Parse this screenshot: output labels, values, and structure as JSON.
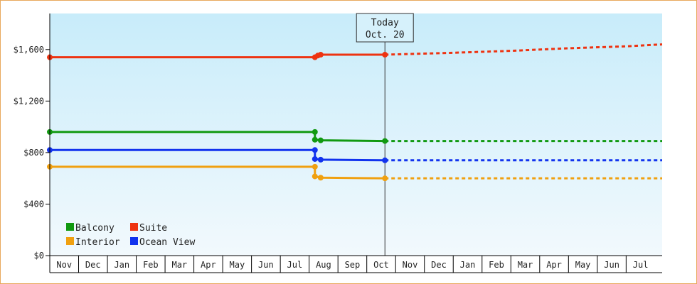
{
  "chart_data": {
    "type": "line",
    "title": "",
    "xlabel": "",
    "ylabel": "",
    "ylim": [
      0,
      1880
    ],
    "y_ticks": [
      0,
      400,
      800,
      1200,
      1600
    ],
    "y_tick_labels": [
      "$0",
      "$400",
      "$800",
      "$1,200",
      "$1,600"
    ],
    "x_month_labels": [
      "Nov",
      "Dec",
      "Jan",
      "Feb",
      "Mar",
      "Apr",
      "May",
      "Jun",
      "Jul",
      "Aug",
      "Sep",
      "Oct",
      "Nov",
      "Dec",
      "Jan",
      "Feb",
      "Mar",
      "Apr",
      "May",
      "Jun",
      "Jul"
    ],
    "x_range_months": [
      0,
      21.25
    ],
    "today": {
      "label_line1": "Today",
      "label_line2": "Oct. 20",
      "x": 11.63
    },
    "legend": {
      "placement": "bottom-left"
    },
    "series": [
      {
        "name": "Balcony",
        "color": "#119911",
        "history": [
          {
            "x": 0,
            "y": 960
          },
          {
            "x": 9.2,
            "y": 960
          },
          {
            "x": 9.2,
            "y": 900
          },
          {
            "x": 9.4,
            "y": 895
          },
          {
            "x": 11.63,
            "y": 890
          }
        ],
        "points": [
          {
            "x": 0,
            "y": 960
          },
          {
            "x": 9.2,
            "y": 960
          },
          {
            "x": 9.2,
            "y": 900
          },
          {
            "x": 9.4,
            "y": 895
          },
          {
            "x": 11.63,
            "y": 890
          }
        ],
        "forecast": [
          {
            "x": 11.63,
            "y": 890
          },
          {
            "x": 21.25,
            "y": 890
          }
        ]
      },
      {
        "name": "Suite",
        "color": "#ee3311",
        "history": [
          {
            "x": 0,
            "y": 1540
          },
          {
            "x": 9.2,
            "y": 1540
          },
          {
            "x": 9.3,
            "y": 1553
          },
          {
            "x": 9.4,
            "y": 1560
          },
          {
            "x": 11.63,
            "y": 1560
          }
        ],
        "points": [
          {
            "x": 0,
            "y": 1540
          },
          {
            "x": 9.2,
            "y": 1540
          },
          {
            "x": 9.3,
            "y": 1553
          },
          {
            "x": 9.4,
            "y": 1560
          },
          {
            "x": 11.63,
            "y": 1560
          }
        ],
        "forecast": [
          {
            "x": 11.63,
            "y": 1560
          },
          {
            "x": 14,
            "y": 1575
          },
          {
            "x": 16,
            "y": 1590
          },
          {
            "x": 18,
            "y": 1610
          },
          {
            "x": 20,
            "y": 1625
          },
          {
            "x": 21.25,
            "y": 1640
          }
        ]
      },
      {
        "name": "Interior",
        "color": "#f0a010",
        "history": [
          {
            "x": 0,
            "y": 690
          },
          {
            "x": 9.2,
            "y": 690
          },
          {
            "x": 9.2,
            "y": 615
          },
          {
            "x": 9.4,
            "y": 605
          },
          {
            "x": 11.63,
            "y": 600
          }
        ],
        "points": [
          {
            "x": 0,
            "y": 690
          },
          {
            "x": 9.2,
            "y": 690
          },
          {
            "x": 9.2,
            "y": 615
          },
          {
            "x": 9.4,
            "y": 605
          },
          {
            "x": 11.63,
            "y": 600
          }
        ],
        "forecast": [
          {
            "x": 11.63,
            "y": 600
          },
          {
            "x": 21.25,
            "y": 600
          }
        ]
      },
      {
        "name": "Ocean View",
        "color": "#1133ee",
        "history": [
          {
            "x": 0,
            "y": 820
          },
          {
            "x": 9.2,
            "y": 820
          },
          {
            "x": 9.2,
            "y": 750
          },
          {
            "x": 9.4,
            "y": 745
          },
          {
            "x": 11.63,
            "y": 740
          }
        ],
        "points": [
          {
            "x": 0,
            "y": 820
          },
          {
            "x": 9.2,
            "y": 820
          },
          {
            "x": 9.2,
            "y": 750
          },
          {
            "x": 9.4,
            "y": 745
          },
          {
            "x": 11.63,
            "y": 740
          }
        ],
        "forecast": [
          {
            "x": 11.63,
            "y": 740
          },
          {
            "x": 21.25,
            "y": 740
          }
        ]
      }
    ],
    "legend_order": [
      "Balcony",
      "Suite",
      "Interior",
      "Ocean View"
    ],
    "colors": {
      "plot_top": "#c8ecfa",
      "plot_bottom": "#f2f9fd",
      "frame_border": "#e8a85c",
      "axis": "#000000"
    }
  }
}
